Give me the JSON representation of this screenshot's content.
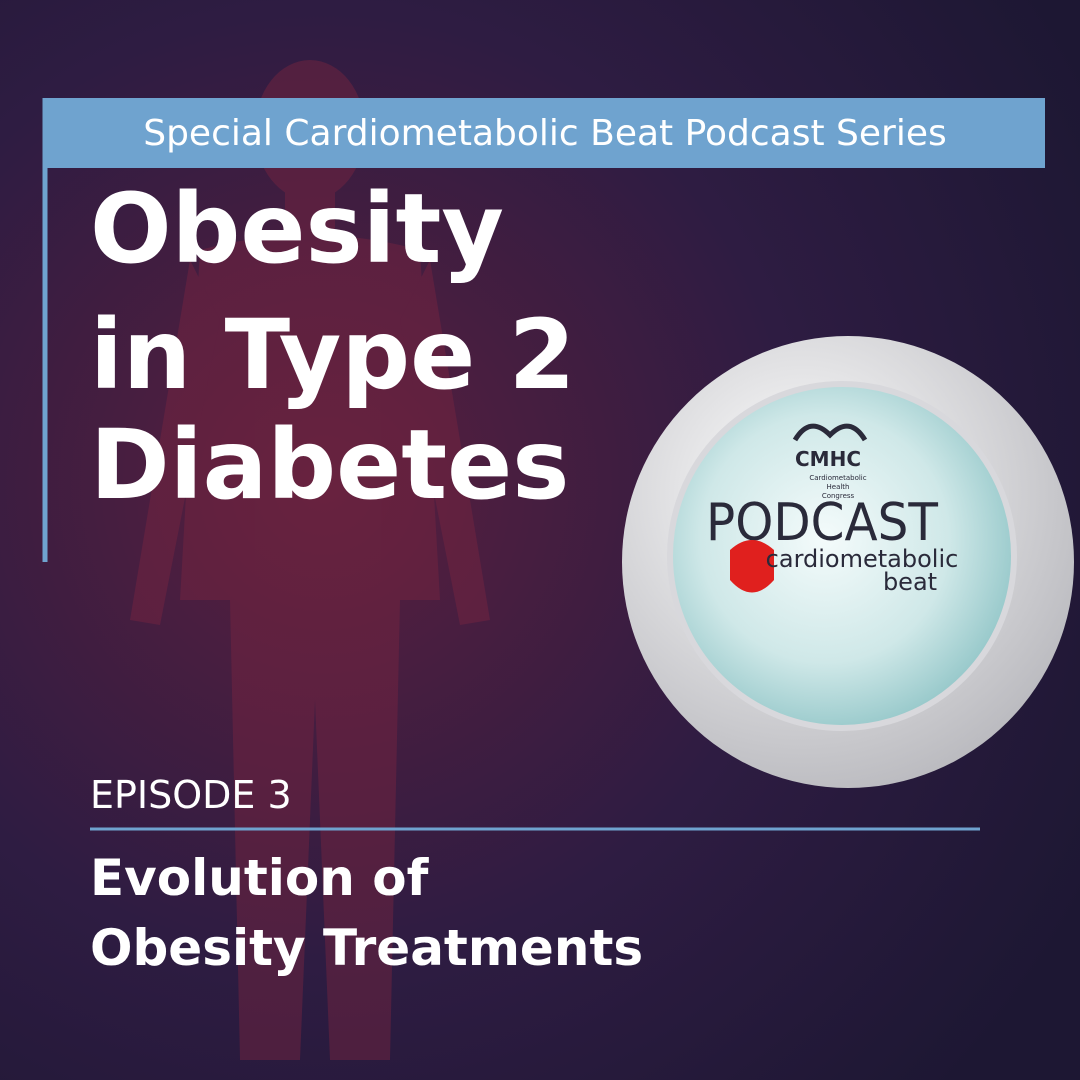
{
  "banner": "Special Cardiometabolic Beat Podcast Series",
  "title": [
    "Obesity",
    "in Type 2",
    "Diabetes"
  ],
  "logo": {
    "org": "CMHC",
    "org_full": [
      "Cardiometabolic",
      "Health",
      "Congress"
    ],
    "podcast": "PODCAST",
    "tagline": [
      "cardiometabolic",
      "beat"
    ]
  },
  "episode": "EPISODE 3",
  "subtitle": [
    "Evolution of",
    "Obesity Treatments"
  ]
}
